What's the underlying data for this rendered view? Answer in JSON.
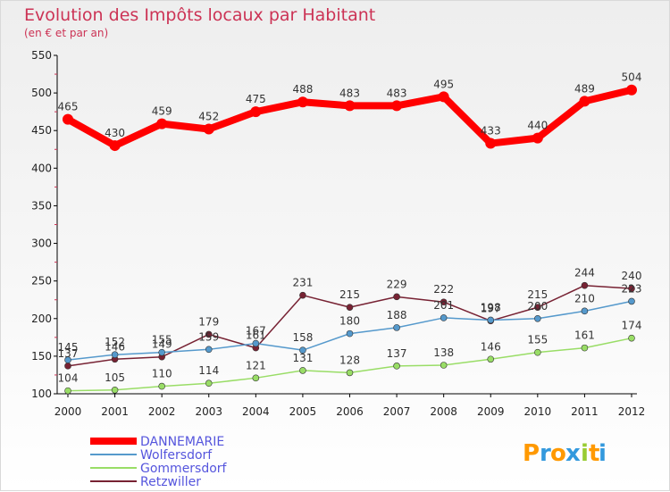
{
  "chart_data": {
    "type": "line",
    "title": "Evolution des Impôts locaux par Habitant",
    "subtitle": "(en € et par an)",
    "xlabel": "",
    "ylabel": "",
    "ylim": [
      100,
      550
    ],
    "yticks": [
      100,
      150,
      200,
      250,
      300,
      350,
      400,
      450,
      500,
      550
    ],
    "categories": [
      "2000",
      "2001",
      "2002",
      "2003",
      "2004",
      "2005",
      "2006",
      "2007",
      "2008",
      "2009",
      "2010",
      "2011",
      "2012"
    ],
    "grid": false,
    "legend_position": "bottom-left",
    "series": [
      {
        "name": "DANNEMARIE",
        "color": "#ff0000",
        "values": [
          465,
          430,
          459,
          452,
          475,
          488,
          483,
          483,
          495,
          433,
          440,
          489,
          504
        ]
      },
      {
        "name": "Wolfersdorf",
        "color": "#5599cc",
        "values": [
          145,
          152,
          155,
          159,
          167,
          158,
          180,
          188,
          201,
          198,
          200,
          210,
          223
        ]
      },
      {
        "name": "Gommersdorf",
        "color": "#99dd66",
        "values": [
          104,
          105,
          110,
          114,
          121,
          131,
          128,
          137,
          138,
          146,
          155,
          161,
          174
        ]
      },
      {
        "name": "Retzwiller",
        "color": "#772233",
        "values": [
          137,
          146,
          149,
          179,
          161,
          231,
          215,
          229,
          222,
          197,
          215,
          244,
          240
        ]
      }
    ]
  },
  "logo": {
    "letters": [
      "P",
      "r",
      "o",
      "x",
      "i",
      "t",
      "i"
    ],
    "colors": [
      "#ff9900",
      "#3399dd",
      "#ff9900",
      "#3399dd",
      "#99cc33",
      "#ff9900",
      "#3399dd"
    ]
  }
}
